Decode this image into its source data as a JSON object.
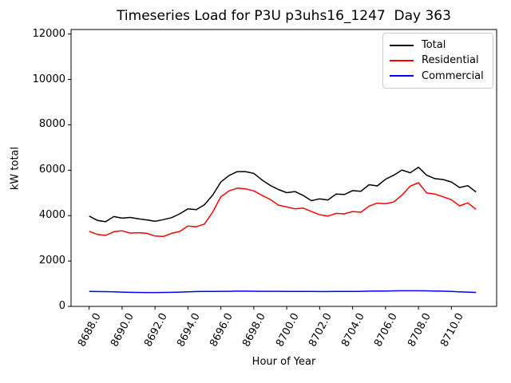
{
  "title": "Timeseries Load for P3U p3uhs16_1247  Day 363",
  "chart_data": {
    "type": "line",
    "title": "Timeseries Load for P3U p3uhs16_1247  Day 363",
    "xlabel": "Hour of Year",
    "ylabel": "kW total",
    "xlim": [
      8686.9,
      8712.75
    ],
    "ylim": [
      0,
      12200
    ],
    "grid": false,
    "background": "#ffffff",
    "axes_color": "#000000",
    "legend": {
      "position": "upper right",
      "border_color": "#cccccc",
      "entries": [
        "Total",
        "Residential",
        "Commercial"
      ]
    },
    "xticks": [
      8688,
      8690,
      8692,
      8694,
      8696,
      8698,
      8700,
      8702,
      8704,
      8706,
      8708,
      8710
    ],
    "xtick_labels": [
      "8688.0",
      "8690.0",
      "8692.0",
      "8694.0",
      "8696.0",
      "8698.0",
      "8700.0",
      "8702.0",
      "8704.0",
      "8706.0",
      "8708.0",
      "8710.0"
    ],
    "yticks": [
      0,
      2000,
      4000,
      6000,
      8000,
      10000,
      12000
    ],
    "ytick_labels": [
      "0",
      "2000",
      "4000",
      "6000",
      "8000",
      "10000",
      "12000"
    ],
    "x": [
      8688.0,
      8688.5,
      8689.0,
      8689.5,
      8690.0,
      8690.5,
      8691.0,
      8691.5,
      8692.0,
      8692.5,
      8693.0,
      8693.5,
      8694.0,
      8694.5,
      8695.0,
      8695.5,
      8696.0,
      8696.5,
      8697.0,
      8697.5,
      8698.0,
      8698.5,
      8699.0,
      8699.5,
      8700.0,
      8700.5,
      8701.0,
      8701.5,
      8702.0,
      8702.5,
      8703.0,
      8703.5,
      8704.0,
      8704.5,
      8705.0,
      8705.5,
      8706.0,
      8706.5,
      8707.0,
      8707.5,
      8708.0,
      8708.5,
      8709.0,
      8709.5,
      8710.0,
      8710.5,
      8711.0,
      8711.5
    ],
    "series": [
      {
        "name": "Total",
        "color": "#000000",
        "values": [
          3980,
          3790,
          3730,
          3960,
          3890,
          3920,
          3860,
          3810,
          3750,
          3820,
          3910,
          4080,
          4300,
          4260,
          4480,
          4900,
          5480,
          5770,
          5940,
          5940,
          5860,
          5570,
          5330,
          5150,
          5010,
          5060,
          4890,
          4660,
          4740,
          4690,
          4950,
          4930,
          5100,
          5070,
          5360,
          5310,
          5600,
          5780,
          6010,
          5890,
          6130,
          5780,
          5630,
          5590,
          5480,
          5240,
          5320,
          5040
        ]
      },
      {
        "name": "Residential",
        "color": "#ff0000",
        "values": [
          3310,
          3170,
          3130,
          3290,
          3330,
          3230,
          3250,
          3220,
          3100,
          3080,
          3220,
          3300,
          3540,
          3510,
          3630,
          4150,
          4830,
          5090,
          5210,
          5180,
          5090,
          4890,
          4710,
          4460,
          4380,
          4300,
          4330,
          4180,
          4040,
          3980,
          4100,
          4080,
          4180,
          4150,
          4420,
          4550,
          4520,
          4600,
          4900,
          5300,
          5450,
          5000,
          4950,
          4830,
          4700,
          4430,
          4560,
          4280
        ]
      },
      {
        "name": "Commercial",
        "color": "#0000ff",
        "values": [
          660,
          655,
          650,
          645,
          630,
          620,
          615,
          610,
          610,
          615,
          620,
          630,
          645,
          655,
          660,
          660,
          665,
          665,
          670,
          670,
          668,
          666,
          665,
          664,
          662,
          660,
          658,
          656,
          655,
          655,
          658,
          660,
          662,
          665,
          670,
          675,
          680,
          685,
          690,
          690,
          688,
          685,
          680,
          670,
          660,
          645,
          630,
          615
        ]
      }
    ]
  }
}
